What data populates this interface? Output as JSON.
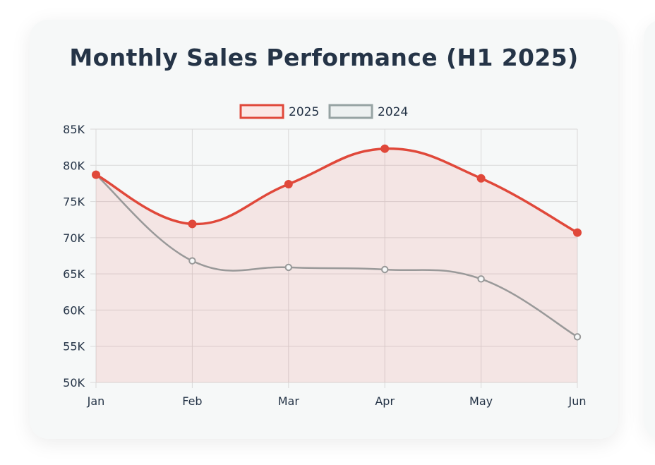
{
  "chart_data": {
    "type": "line",
    "title": "Monthly Sales Performance (H1 2025)",
    "categories": [
      "Jan",
      "Feb",
      "Mar",
      "Apr",
      "May",
      "Jun"
    ],
    "series": [
      {
        "name": "2025",
        "values": [
          78700,
          71900,
          77400,
          82300,
          78200,
          70700
        ],
        "color": "#e0483a",
        "fill": "rgba(224,72,58,0.10)",
        "filled": true
      },
      {
        "name": "2024",
        "values": [
          78700,
          66800,
          65900,
          65600,
          64300,
          56300
        ],
        "color": "#999999",
        "filled": false
      }
    ],
    "ylim": [
      50000,
      85000
    ],
    "yticks": [
      50000,
      55000,
      60000,
      65000,
      70000,
      75000,
      80000,
      85000
    ],
    "ytick_labels": [
      "50K",
      "55K",
      "60K",
      "65K",
      "70K",
      "75K",
      "80K",
      "85K"
    ],
    "xlabel": "",
    "ylabel": "",
    "grid": true,
    "legend_position": "top"
  },
  "legend": {
    "items": [
      {
        "label": "2025",
        "stroke": "#e0483a",
        "fill": "#fbe7e5"
      },
      {
        "label": "2024",
        "stroke": "#96a3a3",
        "fill": "#edf1f1"
      }
    ]
  },
  "colors": {
    "title": "#253447",
    "grid": "#d9d9d9",
    "card": "#f6f8f8"
  }
}
